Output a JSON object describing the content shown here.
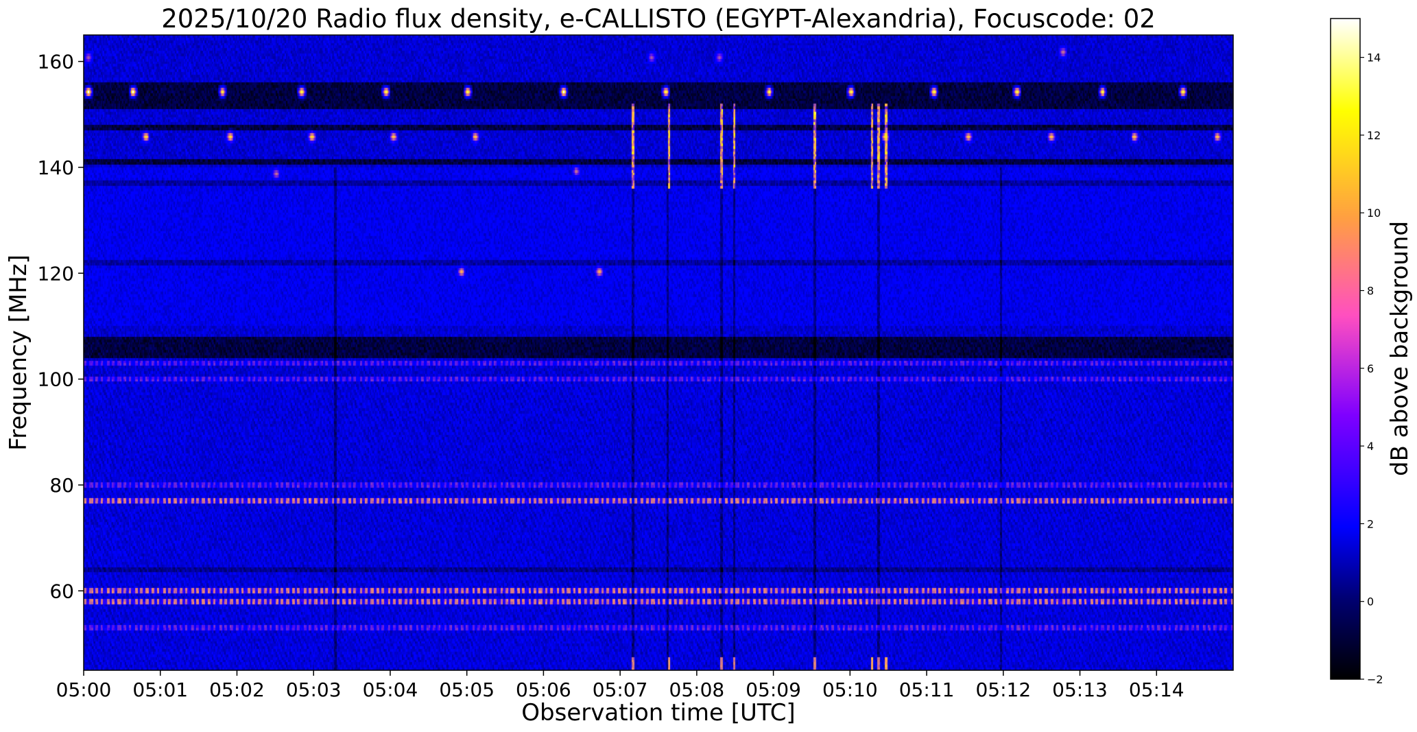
{
  "chart_data": {
    "type": "heatmap",
    "title": "2025/10/20  Radio flux density, e-CALLISTO (EGYPT-Alexandria), Focuscode: 02",
    "xlabel": "Observation time [UTC]",
    "ylabel": "Frequency [MHz]",
    "colorbar_label": "dB above background",
    "colormap": "gnuplot2",
    "colormap_stops": [
      "#000000",
      "#0000ff",
      "#7f00ff",
      "#ff60b0",
      "#ffa040",
      "#ffff00",
      "#ffffff"
    ],
    "x_range_seconds_after_0500": [
      0,
      900
    ],
    "xlim": [
      "05:00:00",
      "05:15:00"
    ],
    "ylim": [
      45,
      165
    ],
    "clim": [
      -2,
      15
    ],
    "x_ticks": [
      {
        "label": "05:00",
        "t": 0
      },
      {
        "label": "05:01",
        "t": 60
      },
      {
        "label": "05:02",
        "t": 120
      },
      {
        "label": "05:03",
        "t": 180
      },
      {
        "label": "05:04",
        "t": 240
      },
      {
        "label": "05:05",
        "t": 300
      },
      {
        "label": "05:06",
        "t": 360
      },
      {
        "label": "05:07",
        "t": 420
      },
      {
        "label": "05:08",
        "t": 480
      },
      {
        "label": "05:09",
        "t": 540
      },
      {
        "label": "05:10",
        "t": 600
      },
      {
        "label": "05:11",
        "t": 660
      },
      {
        "label": "05:12",
        "t": 720
      },
      {
        "label": "05:13",
        "t": 780
      },
      {
        "label": "05:14",
        "t": 840
      }
    ],
    "y_ticks": [
      {
        "label": "60",
        "v": 60
      },
      {
        "label": "80",
        "v": 80
      },
      {
        "label": "100",
        "v": 100
      },
      {
        "label": "120",
        "v": 120
      },
      {
        "label": "140",
        "v": 140
      },
      {
        "label": "160",
        "v": 160
      }
    ],
    "colorbar_ticks": [
      {
        "label": "−2",
        "v": -2
      },
      {
        "label": "0",
        "v": 0
      },
      {
        "label": "2",
        "v": 2
      },
      {
        "label": "4",
        "v": 4
      },
      {
        "label": "6",
        "v": 6
      },
      {
        "label": "8",
        "v": 8
      },
      {
        "label": "10",
        "v": 10
      },
      {
        "label": "12",
        "v": 12
      },
      {
        "label": "14",
        "v": 14
      }
    ],
    "dark_bands_mhz": [
      [
        151,
        156
      ],
      [
        147,
        148
      ],
      [
        140.5,
        141.5
      ],
      [
        104,
        108
      ]
    ],
    "persistent_bright_lines_mhz": [
      77,
      60,
      58,
      80,
      53,
      100,
      103
    ],
    "vertical_bright_burst_lines_seconds": [
      430,
      458,
      499,
      509,
      572,
      617,
      622,
      628
    ],
    "vertical_dark_lines_seconds": [
      197,
      430,
      457,
      499,
      509,
      572,
      622,
      718
    ],
    "notable_bright_spots": [
      {
        "t": 3,
        "f": 154,
        "v": 15
      },
      {
        "t": 38,
        "f": 154,
        "v": 15
      },
      {
        "t": 108,
        "f": 154,
        "v": 14
      },
      {
        "t": 170,
        "f": 154,
        "v": 14
      },
      {
        "t": 236,
        "f": 154,
        "v": 14
      },
      {
        "t": 300,
        "f": 154,
        "v": 14
      },
      {
        "t": 375,
        "f": 154,
        "v": 15
      },
      {
        "t": 455,
        "f": 154,
        "v": 14
      },
      {
        "t": 536,
        "f": 154,
        "v": 14
      },
      {
        "t": 600,
        "f": 154,
        "v": 14
      },
      {
        "t": 665,
        "f": 154,
        "v": 14
      },
      {
        "t": 730,
        "f": 154,
        "v": 14
      },
      {
        "t": 797,
        "f": 154,
        "v": 14
      },
      {
        "t": 860,
        "f": 154,
        "v": 14
      },
      {
        "t": 48,
        "f": 145.5,
        "v": 13
      },
      {
        "t": 114,
        "f": 145.5,
        "v": 13
      },
      {
        "t": 178,
        "f": 145.5,
        "v": 13
      },
      {
        "t": 242,
        "f": 145.5,
        "v": 12
      },
      {
        "t": 306,
        "f": 145.5,
        "v": 12
      },
      {
        "t": 627,
        "f": 145.5,
        "v": 13
      },
      {
        "t": 692,
        "f": 145.5,
        "v": 12
      },
      {
        "t": 757,
        "f": 145.5,
        "v": 12
      },
      {
        "t": 822,
        "f": 145.5,
        "v": 12
      },
      {
        "t": 887,
        "f": 145.5,
        "v": 12
      },
      {
        "t": 444,
        "f": 160.5,
        "v": 8
      },
      {
        "t": 497,
        "f": 160.5,
        "v": 8
      },
      {
        "t": 766,
        "f": 161.5,
        "v": 9
      },
      {
        "t": 3,
        "f": 160.5,
        "v": 8
      },
      {
        "t": 295,
        "f": 120,
        "v": 11
      },
      {
        "t": 403,
        "f": 120,
        "v": 11
      },
      {
        "t": 150,
        "f": 138.5,
        "v": 9
      },
      {
        "t": 385,
        "f": 139,
        "v": 9
      }
    ]
  }
}
